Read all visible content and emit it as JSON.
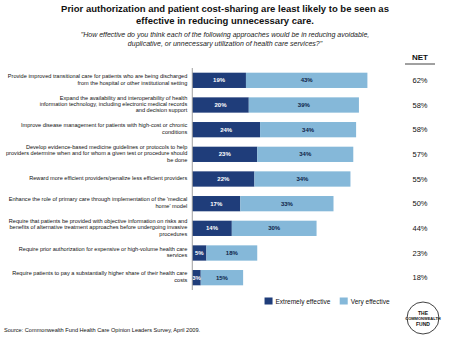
{
  "chart_data": {
    "type": "bar",
    "orientation": "horizontal",
    "stacked": true,
    "title": "Prior authorization and patient cost-sharing are least likely to be seen as\neffective in reducing unnecessary care.",
    "subtitle": "\"How effective do you think each of the following approaches would be in reducing avoidable,\nduplicative, or unnecessary utilization of health care services?\"",
    "categories": [
      "Provide improved transitional care for patients who are being discharged\nfrom the hospital or other institutional setting",
      "Expand the availability and interoperability of health\ninformation technology, including electronic medical records\nand decision support",
      "Improve disease management for patients with high-cost or chronic\nconditions",
      "Develop evidence-based medicine guidelines or protocols to help\nproviders determine when and for whom a given test or procedure should\nbe done",
      "Reward more efficient providers/penalize less efficient providers",
      "Enhance the role of primary care through implementation of the 'medical\nhome' model",
      "Require that patients be provided with objective information on risks and\nbenefits of alternative treatment approaches before undergoing invasive\nprocedures",
      "Require prior authorization for expensive or high-volume health care\nservices",
      "Require patients to pay a substantially higher share of their health care\ncosts"
    ],
    "series": [
      {
        "name": "Extremely effective",
        "color": "#1f3d7a",
        "values": [
          19,
          20,
          24,
          23,
          22,
          17,
          14,
          5,
          3
        ],
        "value_labels": [
          "19%",
          "20%",
          "24%",
          "23%",
          "22%",
          "17%",
          "14%",
          "5%",
          "3%"
        ]
      },
      {
        "name": "Very effective",
        "color": "#85b8d9",
        "values": [
          43,
          39,
          34,
          34,
          34,
          33,
          30,
          18,
          15
        ],
        "value_labels": [
          "43%",
          "39%",
          "34%",
          "34%",
          "34%",
          "33%",
          "30%",
          "18%",
          "15%"
        ]
      }
    ],
    "xlim": [
      0,
      70
    ],
    "tick_labels": false,
    "grid": false,
    "legend": "bottom",
    "data_labels": true,
    "net_label": "NET",
    "net": {
      "values": [
        62,
        58,
        58,
        57,
        55,
        50,
        44,
        23,
        18
      ],
      "value_labels": [
        "62%",
        "58%",
        "58%",
        "57%",
        "55%",
        "50%",
        "44%",
        "23%",
        "18%"
      ]
    },
    "source": "Source: Commonwealth Fund Health Care Opinion Leaders Survey, April 2009.",
    "logo": [
      "THE",
      "COMMONWEALTH",
      "FUND"
    ]
  }
}
